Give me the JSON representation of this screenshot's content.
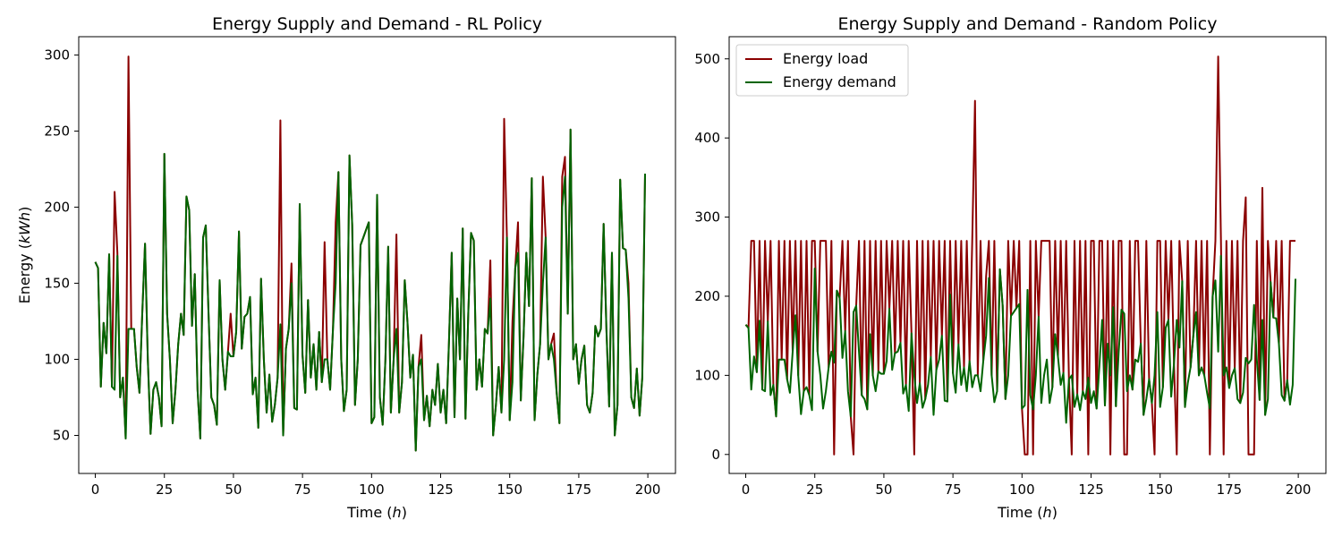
{
  "colors": {
    "load": "#8b0000",
    "demand": "#006400"
  },
  "chart_data": [
    {
      "type": "line",
      "title": "Energy Supply and Demand - RL Policy",
      "xlabel": "Time (h)",
      "ylabel": "Energy (kWh)",
      "xlim": [
        -6,
        210
      ],
      "ylim": [
        25,
        312
      ],
      "xticks": [
        0,
        25,
        50,
        75,
        100,
        125,
        150,
        175,
        200
      ],
      "yticks": [
        50,
        100,
        150,
        200,
        250,
        300
      ],
      "legend": null,
      "x": [
        0,
        1,
        2,
        3,
        4,
        5,
        6,
        7,
        8,
        9,
        10,
        11,
        12,
        13,
        14,
        15,
        16,
        17,
        18,
        19,
        20,
        21,
        22,
        23,
        24,
        25,
        26,
        27,
        28,
        29,
        30,
        31,
        32,
        33,
        34,
        35,
        36,
        37,
        38,
        39,
        40,
        41,
        42,
        43,
        44,
        45,
        46,
        47,
        48,
        49,
        50,
        51,
        52,
        53,
        54,
        55,
        56,
        57,
        58,
        59,
        60,
        61,
        62,
        63,
        64,
        65,
        66,
        67,
        68,
        69,
        70,
        71,
        72,
        73,
        74,
        75,
        76,
        77,
        78,
        79,
        80,
        81,
        82,
        83,
        84,
        85,
        86,
        87,
        88,
        89,
        90,
        91,
        92,
        93,
        94,
        95,
        96,
        97,
        98,
        99,
        100,
        101,
        102,
        103,
        104,
        105,
        106,
        107,
        108,
        109,
        110,
        111,
        112,
        113,
        114,
        115,
        116,
        117,
        118,
        119,
        120,
        121,
        122,
        123,
        124,
        125,
        126,
        127,
        128,
        129,
        130,
        131,
        132,
        133,
        134,
        135,
        136,
        137,
        138,
        139,
        140,
        141,
        142,
        143,
        144,
        145,
        146,
        147,
        148,
        149,
        150,
        151,
        152,
        153,
        154,
        155,
        156,
        157,
        158,
        159,
        160,
        161,
        162,
        163,
        164,
        165,
        166,
        167,
        168,
        169,
        170,
        171,
        172,
        173,
        174,
        175,
        176,
        177,
        178,
        179,
        180,
        181,
        182,
        183,
        184,
        185,
        186,
        187,
        188,
        189,
        190,
        191,
        192,
        193,
        194,
        195,
        196,
        197,
        198,
        199
      ],
      "series": [
        {
          "name": "Energy load",
          "color": "#8b0000",
          "values": [
            164,
            160,
            82,
            124,
            104,
            169,
            82,
            210,
            170,
            75,
            88,
            48,
            299,
            120,
            120,
            95,
            78,
            130,
            176,
            100,
            51,
            80,
            85,
            75,
            56,
            235,
            130,
            100,
            58,
            80,
            110,
            130,
            116,
            207,
            198,
            122,
            156,
            80,
            48,
            180,
            188,
            130,
            75,
            70,
            57,
            152,
            100,
            80,
            105,
            130,
            102,
            118,
            184,
            107,
            128,
            130,
            141,
            77,
            88,
            55,
            153,
            100,
            65,
            90,
            59,
            70,
            88,
            257,
            50,
            107,
            120,
            163,
            68,
            67,
            202,
            103,
            78,
            139,
            88,
            110,
            80,
            118,
            85,
            177,
            100,
            80,
            119,
            190,
            223,
            100,
            66,
            80,
            234,
            188,
            70,
            100,
            175,
            180,
            185,
            190,
            58,
            62,
            208,
            75,
            57,
            100,
            174,
            65,
            100,
            182,
            65,
            85,
            152,
            124,
            88,
            103,
            40,
            95,
            116,
            60,
            76,
            56,
            80,
            70,
            97,
            65,
            80,
            58,
            111,
            170,
            62,
            140,
            100,
            186,
            61,
            130,
            183,
            178,
            80,
            100,
            82,
            120,
            117,
            165,
            50,
            70,
            95,
            65,
            258,
            180,
            60,
            125,
            160,
            190,
            73,
            115,
            170,
            135,
            219,
            60,
            90,
            110,
            220,
            180,
            100,
            110,
            117,
            78,
            58,
            220,
            233,
            130,
            251,
            100,
            110,
            84,
            100,
            109,
            70,
            65,
            78,
            122,
            115,
            120,
            189,
            120,
            69,
            170,
            50,
            70,
            218,
            173,
            172,
            150,
            75,
            68,
            94,
            63,
            88,
            222
          ]
        },
        {
          "name": "Energy demand",
          "color": "#006400",
          "values": [
            164,
            160,
            82,
            124,
            104,
            169,
            82,
            80,
            168,
            75,
            88,
            48,
            120,
            120,
            120,
            95,
            78,
            130,
            176,
            100,
            51,
            80,
            85,
            75,
            56,
            235,
            130,
            100,
            58,
            80,
            110,
            130,
            116,
            207,
            198,
            122,
            156,
            80,
            48,
            180,
            188,
            130,
            75,
            70,
            57,
            152,
            100,
            80,
            105,
            102,
            102,
            118,
            184,
            107,
            128,
            130,
            141,
            77,
            88,
            55,
            153,
            100,
            65,
            90,
            59,
            70,
            88,
            123,
            50,
            107,
            120,
            150,
            68,
            67,
            202,
            103,
            78,
            139,
            88,
            110,
            80,
            118,
            85,
            100,
            100,
            80,
            119,
            150,
            223,
            100,
            66,
            80,
            234,
            188,
            70,
            100,
            175,
            180,
            185,
            190,
            58,
            62,
            208,
            75,
            57,
            100,
            174,
            65,
            100,
            120,
            65,
            85,
            152,
            124,
            88,
            103,
            40,
            95,
            100,
            60,
            76,
            56,
            80,
            70,
            97,
            65,
            80,
            58,
            111,
            170,
            62,
            140,
            100,
            186,
            61,
            130,
            183,
            178,
            80,
            100,
            82,
            120,
            117,
            140,
            50,
            70,
            95,
            65,
            100,
            180,
            60,
            85,
            160,
            170,
            73,
            115,
            170,
            135,
            219,
            60,
            90,
            110,
            150,
            180,
            100,
            110,
            100,
            78,
            58,
            200,
            220,
            130,
            251,
            100,
            110,
            84,
            100,
            109,
            70,
            65,
            78,
            122,
            115,
            120,
            189,
            120,
            69,
            170,
            50,
            70,
            218,
            173,
            172,
            140,
            75,
            68,
            94,
            63,
            88,
            222
          ]
        }
      ]
    },
    {
      "type": "line",
      "title": "Energy Supply and Demand - Random Policy",
      "xlabel": "Time (h)",
      "ylabel": "",
      "xlim": [
        -6,
        210
      ],
      "ylim": [
        -24,
        528
      ],
      "xticks": [
        0,
        25,
        50,
        75,
        100,
        125,
        150,
        175,
        200
      ],
      "yticks": [
        0,
        100,
        200,
        300,
        400,
        500
      ],
      "legend": "top-left",
      "x": [
        0,
        1,
        2,
        3,
        4,
        5,
        6,
        7,
        8,
        9,
        10,
        11,
        12,
        13,
        14,
        15,
        16,
        17,
        18,
        19,
        20,
        21,
        22,
        23,
        24,
        25,
        26,
        27,
        28,
        29,
        30,
        31,
        32,
        33,
        34,
        35,
        36,
        37,
        38,
        39,
        40,
        41,
        42,
        43,
        44,
        45,
        46,
        47,
        48,
        49,
        50,
        51,
        52,
        53,
        54,
        55,
        56,
        57,
        58,
        59,
        60,
        61,
        62,
        63,
        64,
        65,
        66,
        67,
        68,
        69,
        70,
        71,
        72,
        73,
        74,
        75,
        76,
        77,
        78,
        79,
        80,
        81,
        82,
        83,
        84,
        85,
        86,
        87,
        88,
        89,
        90,
        91,
        92,
        93,
        94,
        95,
        96,
        97,
        98,
        99,
        100,
        101,
        102,
        103,
        104,
        105,
        106,
        107,
        108,
        109,
        110,
        111,
        112,
        113,
        114,
        115,
        116,
        117,
        118,
        119,
        120,
        121,
        122,
        123,
        124,
        125,
        126,
        127,
        128,
        129,
        130,
        131,
        132,
        133,
        134,
        135,
        136,
        137,
        138,
        139,
        140,
        141,
        142,
        143,
        144,
        145,
        146,
        147,
        148,
        149,
        150,
        151,
        152,
        153,
        154,
        155,
        156,
        157,
        158,
        159,
        160,
        161,
        162,
        163,
        164,
        165,
        166,
        167,
        168,
        169,
        170,
        171,
        172,
        173,
        174,
        175,
        176,
        177,
        178,
        179,
        180,
        181,
        182,
        183,
        184,
        185,
        186,
        187,
        188,
        189,
        190,
        191,
        192,
        193,
        194,
        195,
        196,
        197,
        198,
        199
      ],
      "series": [
        {
          "name": "Energy load",
          "color": "#8b0000",
          "values": [
            164,
            160,
            270,
            270,
            104,
            270,
            82,
            270,
            168,
            270,
            88,
            48,
            270,
            120,
            270,
            95,
            270,
            130,
            270,
            100,
            270,
            80,
            270,
            75,
            270,
            270,
            130,
            270,
            270,
            270,
            110,
            270,
            0,
            207,
            198,
            270,
            156,
            270,
            48,
            0,
            188,
            270,
            75,
            270,
            57,
            270,
            100,
            270,
            105,
            270,
            102,
            270,
            184,
            270,
            128,
            270,
            141,
            270,
            88,
            270,
            153,
            0,
            270,
            90,
            270,
            70,
            270,
            123,
            270,
            107,
            270,
            150,
            270,
            67,
            270,
            103,
            270,
            139,
            270,
            110,
            270,
            118,
            270,
            447,
            100,
            270,
            119,
            225,
            270,
            100,
            270,
            80,
            234,
            188,
            70,
            270,
            175,
            270,
            185,
            270,
            58,
            0,
            0,
            270,
            0,
            270,
            174,
            270,
            270,
            270,
            270,
            85,
            270,
            124,
            270,
            103,
            270,
            95,
            0,
            270,
            76,
            270,
            80,
            270,
            0,
            270,
            270,
            58,
            270,
            270,
            62,
            270,
            0,
            270,
            61,
            270,
            270,
            0,
            0,
            270,
            82,
            270,
            270,
            140,
            50,
            270,
            95,
            65,
            0,
            270,
            270,
            85,
            270,
            170,
            270,
            115,
            0,
            270,
            219,
            60,
            270,
            110,
            150,
            270,
            100,
            270,
            100,
            270,
            0,
            200,
            270,
            503,
            270,
            0,
            270,
            84,
            270,
            109,
            270,
            65,
            270,
            325,
            0,
            0,
            0,
            270,
            69,
            337,
            50,
            270,
            218,
            173,
            270,
            140,
            270,
            68,
            94,
            270,
            270,
            270
          ]
        },
        {
          "name": "Energy demand",
          "color": "#006400",
          "values": [
            164,
            160,
            82,
            124,
            104,
            169,
            82,
            80,
            168,
            75,
            88,
            48,
            120,
            120,
            120,
            95,
            78,
            130,
            176,
            100,
            51,
            80,
            85,
            75,
            56,
            235,
            130,
            100,
            58,
            80,
            110,
            130,
            116,
            207,
            198,
            122,
            156,
            80,
            48,
            180,
            188,
            130,
            75,
            70,
            57,
            152,
            100,
            80,
            105,
            102,
            102,
            118,
            184,
            107,
            128,
            130,
            141,
            77,
            88,
            55,
            153,
            100,
            65,
            90,
            59,
            70,
            88,
            123,
            50,
            107,
            120,
            150,
            68,
            67,
            202,
            103,
            78,
            139,
            88,
            110,
            80,
            118,
            85,
            100,
            100,
            80,
            119,
            150,
            223,
            100,
            66,
            80,
            234,
            188,
            70,
            100,
            175,
            180,
            185,
            190,
            58,
            62,
            208,
            75,
            57,
            100,
            174,
            65,
            100,
            120,
            65,
            85,
            152,
            124,
            88,
            103,
            40,
            95,
            100,
            60,
            76,
            56,
            80,
            70,
            97,
            65,
            80,
            58,
            111,
            170,
            62,
            140,
            100,
            186,
            61,
            130,
            183,
            178,
            80,
            100,
            82,
            120,
            117,
            140,
            50,
            70,
            95,
            65,
            100,
            180,
            60,
            85,
            160,
            170,
            73,
            115,
            170,
            135,
            219,
            60,
            90,
            110,
            150,
            180,
            100,
            110,
            100,
            78,
            58,
            200,
            220,
            130,
            251,
            100,
            110,
            84,
            100,
            109,
            70,
            65,
            78,
            122,
            115,
            120,
            189,
            120,
            69,
            170,
            50,
            70,
            218,
            173,
            172,
            140,
            75,
            68,
            94,
            63,
            88,
            222
          ]
        }
      ]
    }
  ]
}
